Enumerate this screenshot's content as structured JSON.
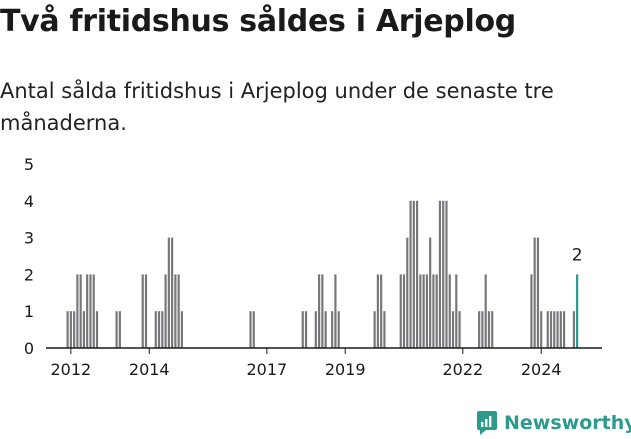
{
  "header": {
    "title": "Två fritidshus såldes i Arjeplog",
    "subtitle": "Antal sålda fritidshus i Arjeplog under de senaste tre månaderna."
  },
  "branding": {
    "logo_text": "Newsworthy",
    "logo_icon": "newsworthy-chart-icon"
  },
  "colors": {
    "bar": "#77767b",
    "highlight": "#24988a",
    "text": "#1a1a1a",
    "brand": "#2d9a8c"
  },
  "chart_data": {
    "type": "bar",
    "x_unit": "month",
    "ylim": [
      0,
      5
    ],
    "yticks": [
      0,
      1,
      2,
      3,
      4,
      5
    ],
    "xticks": [
      "2012",
      "2014",
      "2017",
      "2019",
      "2022",
      "2024"
    ],
    "xtick_dates": [
      "2012-01",
      "2014-01",
      "2017-01",
      "2019-01",
      "2022-01",
      "2024-01"
    ],
    "grid": false,
    "highlight_label": "2",
    "series": [
      {
        "points": [
          [
            "2011-12",
            1
          ],
          [
            "2012-01",
            1
          ],
          [
            "2012-02",
            1
          ],
          [
            "2012-03",
            2
          ],
          [
            "2012-04",
            2
          ],
          [
            "2012-05",
            1
          ],
          [
            "2012-06",
            2
          ],
          [
            "2012-07",
            2
          ],
          [
            "2012-08",
            2
          ],
          [
            "2012-09",
            1
          ],
          [
            "2013-03",
            1
          ],
          [
            "2013-04",
            1
          ],
          [
            "2013-11",
            2
          ],
          [
            "2013-12",
            2
          ],
          [
            "2014-03",
            1
          ],
          [
            "2014-04",
            1
          ],
          [
            "2014-05",
            1
          ],
          [
            "2014-06",
            2
          ],
          [
            "2014-07",
            3
          ],
          [
            "2014-08",
            3
          ],
          [
            "2014-09",
            2
          ],
          [
            "2014-10",
            2
          ],
          [
            "2014-11",
            1
          ],
          [
            "2016-08",
            1
          ],
          [
            "2016-09",
            1
          ],
          [
            "2017-12",
            1
          ],
          [
            "2018-01",
            1
          ],
          [
            "2018-04",
            1
          ],
          [
            "2018-05",
            2
          ],
          [
            "2018-06",
            2
          ],
          [
            "2018-07",
            1
          ],
          [
            "2018-09",
            1
          ],
          [
            "2018-10",
            2
          ],
          [
            "2018-11",
            1
          ],
          [
            "2019-10",
            1
          ],
          [
            "2019-11",
            2
          ],
          [
            "2019-12",
            2
          ],
          [
            "2020-01",
            1
          ],
          [
            "2020-06",
            2
          ],
          [
            "2020-07",
            2
          ],
          [
            "2020-08",
            3
          ],
          [
            "2020-09",
            4
          ],
          [
            "2020-10",
            4
          ],
          [
            "2020-11",
            4
          ],
          [
            "2020-12",
            2
          ],
          [
            "2021-01",
            2
          ],
          [
            "2021-02",
            2
          ],
          [
            "2021-03",
            3
          ],
          [
            "2021-04",
            2
          ],
          [
            "2021-05",
            2
          ],
          [
            "2021-06",
            4
          ],
          [
            "2021-07",
            4
          ],
          [
            "2021-08",
            4
          ],
          [
            "2021-09",
            2
          ],
          [
            "2021-10",
            1
          ],
          [
            "2021-11",
            2
          ],
          [
            "2021-12",
            1
          ],
          [
            "2022-06",
            1
          ],
          [
            "2022-07",
            1
          ],
          [
            "2022-08",
            2
          ],
          [
            "2022-09",
            1
          ],
          [
            "2022-10",
            1
          ],
          [
            "2023-10",
            2
          ],
          [
            "2023-11",
            3
          ],
          [
            "2023-12",
            3
          ],
          [
            "2024-01",
            1
          ],
          [
            "2024-03",
            1
          ],
          [
            "2024-04",
            1
          ],
          [
            "2024-05",
            1
          ],
          [
            "2024-06",
            1
          ],
          [
            "2024-07",
            1
          ],
          [
            "2024-08",
            1
          ],
          [
            "2024-11",
            1
          ],
          [
            "2024-12",
            2
          ]
        ]
      }
    ]
  }
}
